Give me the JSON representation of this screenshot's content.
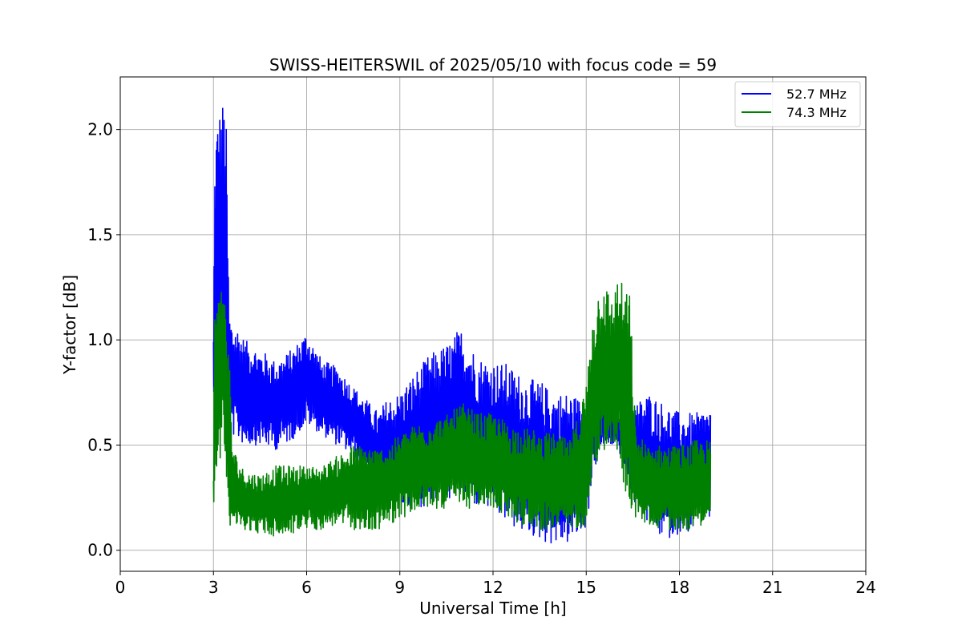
{
  "chart_data": {
    "type": "line",
    "title": "SWISS-HEITERSWIL of 2025/05/10 with focus code = 59",
    "xlabel": "Universal Time [h]",
    "ylabel": "Y-factor [dB]",
    "xlim": [
      0,
      24
    ],
    "ylim": [
      -0.1,
      2.25
    ],
    "xticks": [
      0,
      3,
      6,
      9,
      12,
      15,
      18,
      21,
      24
    ],
    "xtick_labels": [
      "0",
      "3",
      "6",
      "9",
      "12",
      "15",
      "18",
      "21",
      "24"
    ],
    "yticks": [
      0.0,
      0.5,
      1.0,
      1.5,
      2.0
    ],
    "ytick_labels": [
      "0.0",
      "0.5",
      "1.0",
      "1.5",
      "2.0"
    ],
    "grid": true,
    "legend_position": "top-right",
    "series": [
      {
        "name": "52.7 MHz",
        "color": "#0000ff",
        "envelope_x": [
          3.0,
          3.05,
          3.1,
          3.2,
          3.3,
          3.4,
          3.5,
          3.6,
          3.8,
          4.0,
          4.5,
          5.0,
          5.5,
          6.0,
          6.5,
          7.0,
          7.5,
          8.0,
          8.3,
          8.6,
          9.0,
          9.5,
          10.0,
          10.5,
          11.0,
          11.5,
          12.0,
          12.5,
          13.0,
          13.5,
          14.0,
          14.5,
          15.0,
          15.2,
          15.5,
          16.0,
          16.4,
          16.6,
          17.0,
          17.5,
          18.0,
          18.5,
          19.0
        ],
        "upper": [
          1.04,
          1.93,
          2.05,
          2.1,
          2.14,
          2.11,
          1.15,
          1.08,
          1.06,
          1.0,
          0.95,
          0.9,
          0.95,
          1.04,
          0.9,
          0.87,
          0.78,
          0.7,
          0.66,
          0.72,
          0.75,
          0.85,
          0.93,
          0.98,
          1.06,
          0.92,
          0.9,
          0.88,
          0.82,
          0.8,
          0.75,
          0.75,
          0.7,
          0.78,
          0.72,
          0.68,
          0.65,
          0.7,
          0.75,
          0.7,
          0.65,
          0.65,
          0.68
        ],
        "lower": [
          0.6,
          0.65,
          0.68,
          0.7,
          0.7,
          0.68,
          0.55,
          0.55,
          0.52,
          0.5,
          0.5,
          0.48,
          0.52,
          0.6,
          0.55,
          0.5,
          0.45,
          0.35,
          0.22,
          0.2,
          0.2,
          0.2,
          0.22,
          0.25,
          0.25,
          0.2,
          0.18,
          0.12,
          0.08,
          0.05,
          0.03,
          0.03,
          0.1,
          0.35,
          0.5,
          0.5,
          0.3,
          0.2,
          0.12,
          0.05,
          0.08,
          0.1,
          0.15
        ]
      },
      {
        "name": "74.3 MHz",
        "color": "#008000",
        "envelope_x": [
          3.0,
          3.05,
          3.1,
          3.2,
          3.3,
          3.4,
          3.5,
          3.6,
          3.8,
          4.0,
          4.5,
          5.0,
          5.5,
          6.0,
          6.5,
          7.0,
          7.5,
          8.0,
          8.3,
          8.6,
          9.0,
          9.5,
          10.0,
          10.5,
          11.0,
          11.5,
          12.0,
          12.5,
          13.0,
          13.5,
          14.0,
          14.5,
          15.0,
          15.2,
          15.5,
          15.8,
          16.0,
          16.4,
          16.6,
          17.0,
          17.5,
          18.0,
          18.5,
          19.0
        ],
        "upper": [
          0.38,
          1.35,
          1.25,
          1.2,
          1.38,
          1.12,
          1.0,
          0.52,
          0.42,
          0.38,
          0.36,
          0.4,
          0.4,
          0.4,
          0.4,
          0.45,
          0.5,
          0.5,
          0.48,
          0.5,
          0.55,
          0.6,
          0.62,
          0.64,
          0.7,
          0.65,
          0.65,
          0.6,
          0.58,
          0.56,
          0.55,
          0.52,
          0.8,
          1.1,
          1.32,
          1.2,
          1.29,
          1.23,
          0.55,
          0.5,
          0.5,
          0.5,
          0.52,
          0.52
        ],
        "lower": [
          0.16,
          0.35,
          0.4,
          0.42,
          0.45,
          0.42,
          0.12,
          0.12,
          0.1,
          0.1,
          0.08,
          0.06,
          0.08,
          0.1,
          0.1,
          0.12,
          0.1,
          0.08,
          0.1,
          0.12,
          0.15,
          0.18,
          0.2,
          0.2,
          0.2,
          0.2,
          0.2,
          0.15,
          0.12,
          0.1,
          0.1,
          0.1,
          0.12,
          0.4,
          0.45,
          0.5,
          0.45,
          0.2,
          0.15,
          0.12,
          0.1,
          0.1,
          0.1,
          0.15
        ]
      }
    ]
  }
}
